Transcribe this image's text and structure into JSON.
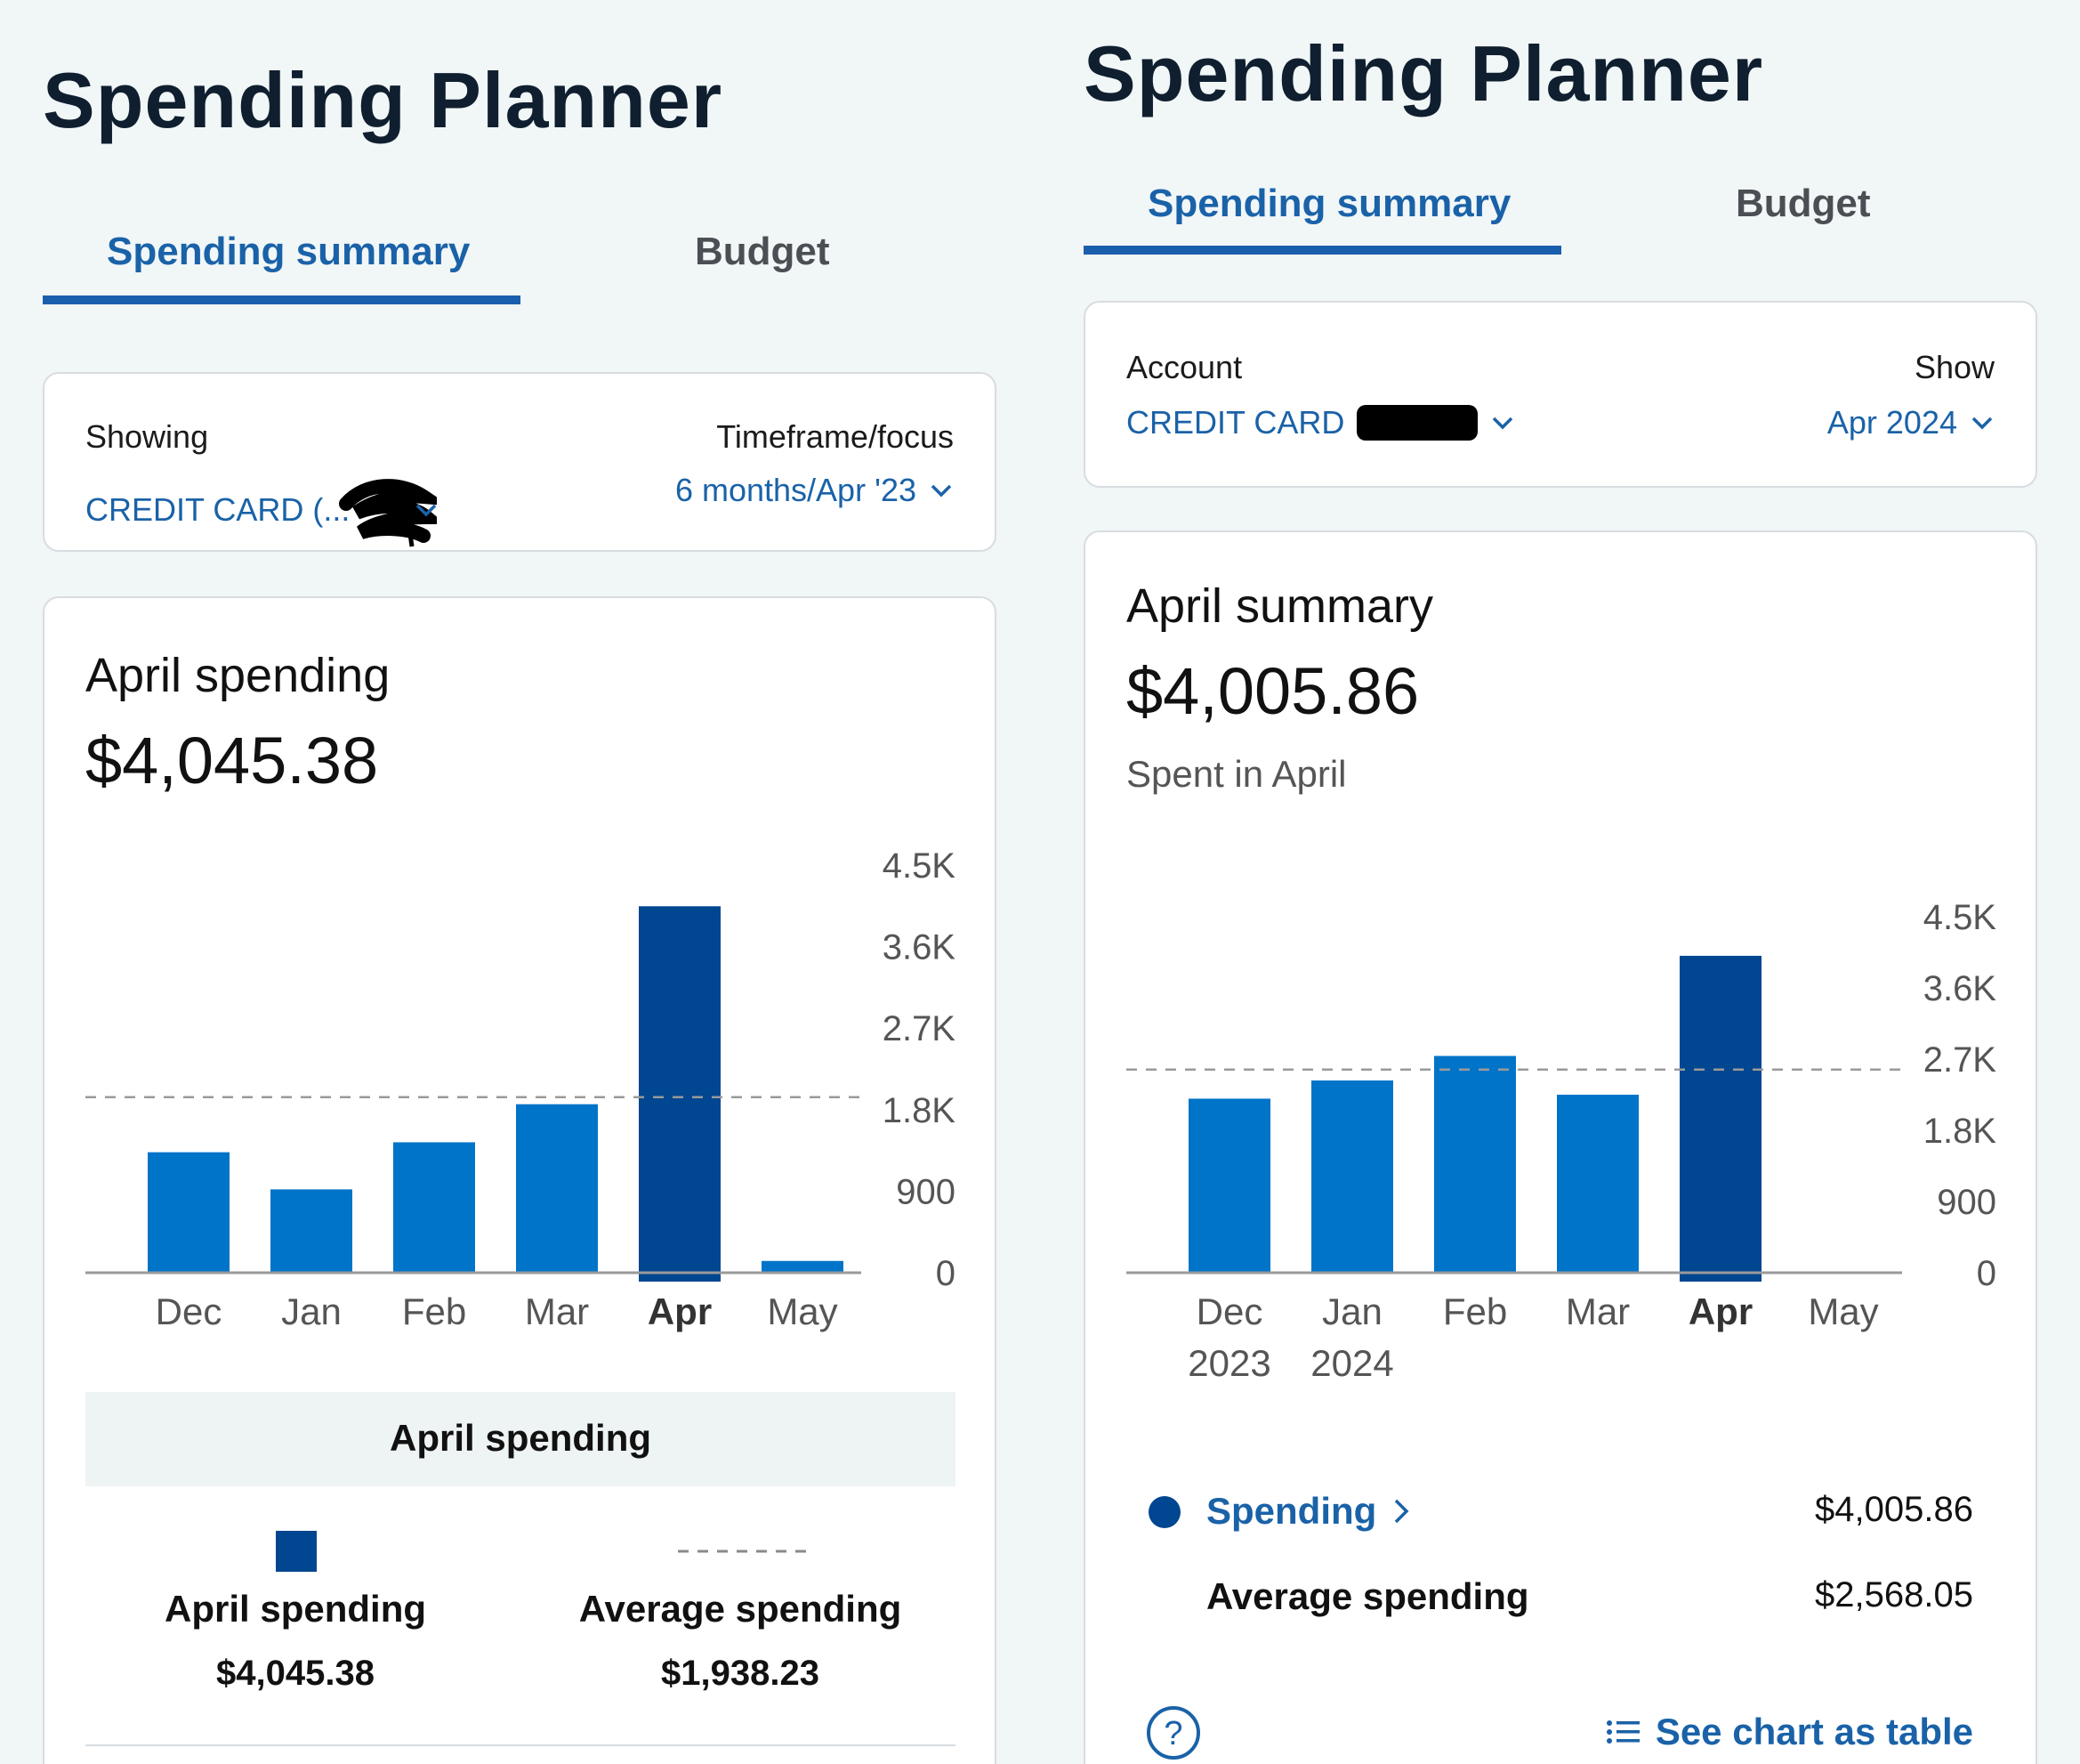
{
  "left": {
    "title": "Spending Planner",
    "tabs": [
      {
        "label": "Spending summary",
        "active": true
      },
      {
        "label": "Budget",
        "active": false
      }
    ],
    "selector": {
      "showing_label": "Showing",
      "showing_value": "CREDIT CARD (...",
      "timeframe_label": "Timeframe/focus",
      "timeframe_value": "6 months/Apr '23"
    },
    "summary": {
      "title": "April spending",
      "amount": "$4,045.38"
    },
    "chart_data": {
      "type": "bar",
      "categories": [
        "Dec",
        "Jan",
        "Feb",
        "Mar",
        "Apr",
        "May"
      ],
      "values": [
        1330,
        920,
        1440,
        1860,
        4045.38,
        130
      ],
      "highlight_index": 4,
      "average": 1938.23,
      "y_ticks": [
        "4.5K",
        "3.6K",
        "2.7K",
        "1.8K",
        "900",
        "0"
      ],
      "ylim": [
        0,
        4500
      ]
    },
    "legend": {
      "title": "April spending",
      "items": [
        {
          "label": "April spending",
          "value": "$4,045.38"
        },
        {
          "label": "Average spending",
          "value": "$1,938.23"
        }
      ]
    }
  },
  "right": {
    "title": "Spending Planner",
    "tabs": [
      {
        "label": "Spending summary",
        "active": true
      },
      {
        "label": "Budget",
        "active": false
      }
    ],
    "selector": {
      "account_label": "Account",
      "account_value": "CREDIT CARD",
      "show_label": "Show",
      "show_value": "Apr 2024"
    },
    "summary": {
      "title": "April summary",
      "amount": "$4,005.86",
      "subtitle": "Spent in April"
    },
    "chart_data": {
      "type": "bar",
      "categories": [
        "Dec\n2023",
        "Jan\n2024",
        "Feb",
        "Mar",
        "Apr",
        "May"
      ],
      "values": [
        2200,
        2430,
        2740,
        2250,
        4005.86,
        0
      ],
      "highlight_index": 4,
      "average": 2568.05,
      "y_ticks": [
        "4.5K",
        "3.6K",
        "2.7K",
        "1.8K",
        "900",
        "0"
      ],
      "ylim": [
        0,
        4500
      ]
    },
    "legend": {
      "rows": [
        {
          "label": "Spending",
          "value": "$4,005.86"
        },
        {
          "label": "Average spending",
          "value": "$2,568.05"
        }
      ],
      "see_table": "See chart as table"
    }
  },
  "colors": {
    "bar": "#0074c8",
    "bar_highlight": "#004690",
    "accent": "#1a62a8"
  }
}
